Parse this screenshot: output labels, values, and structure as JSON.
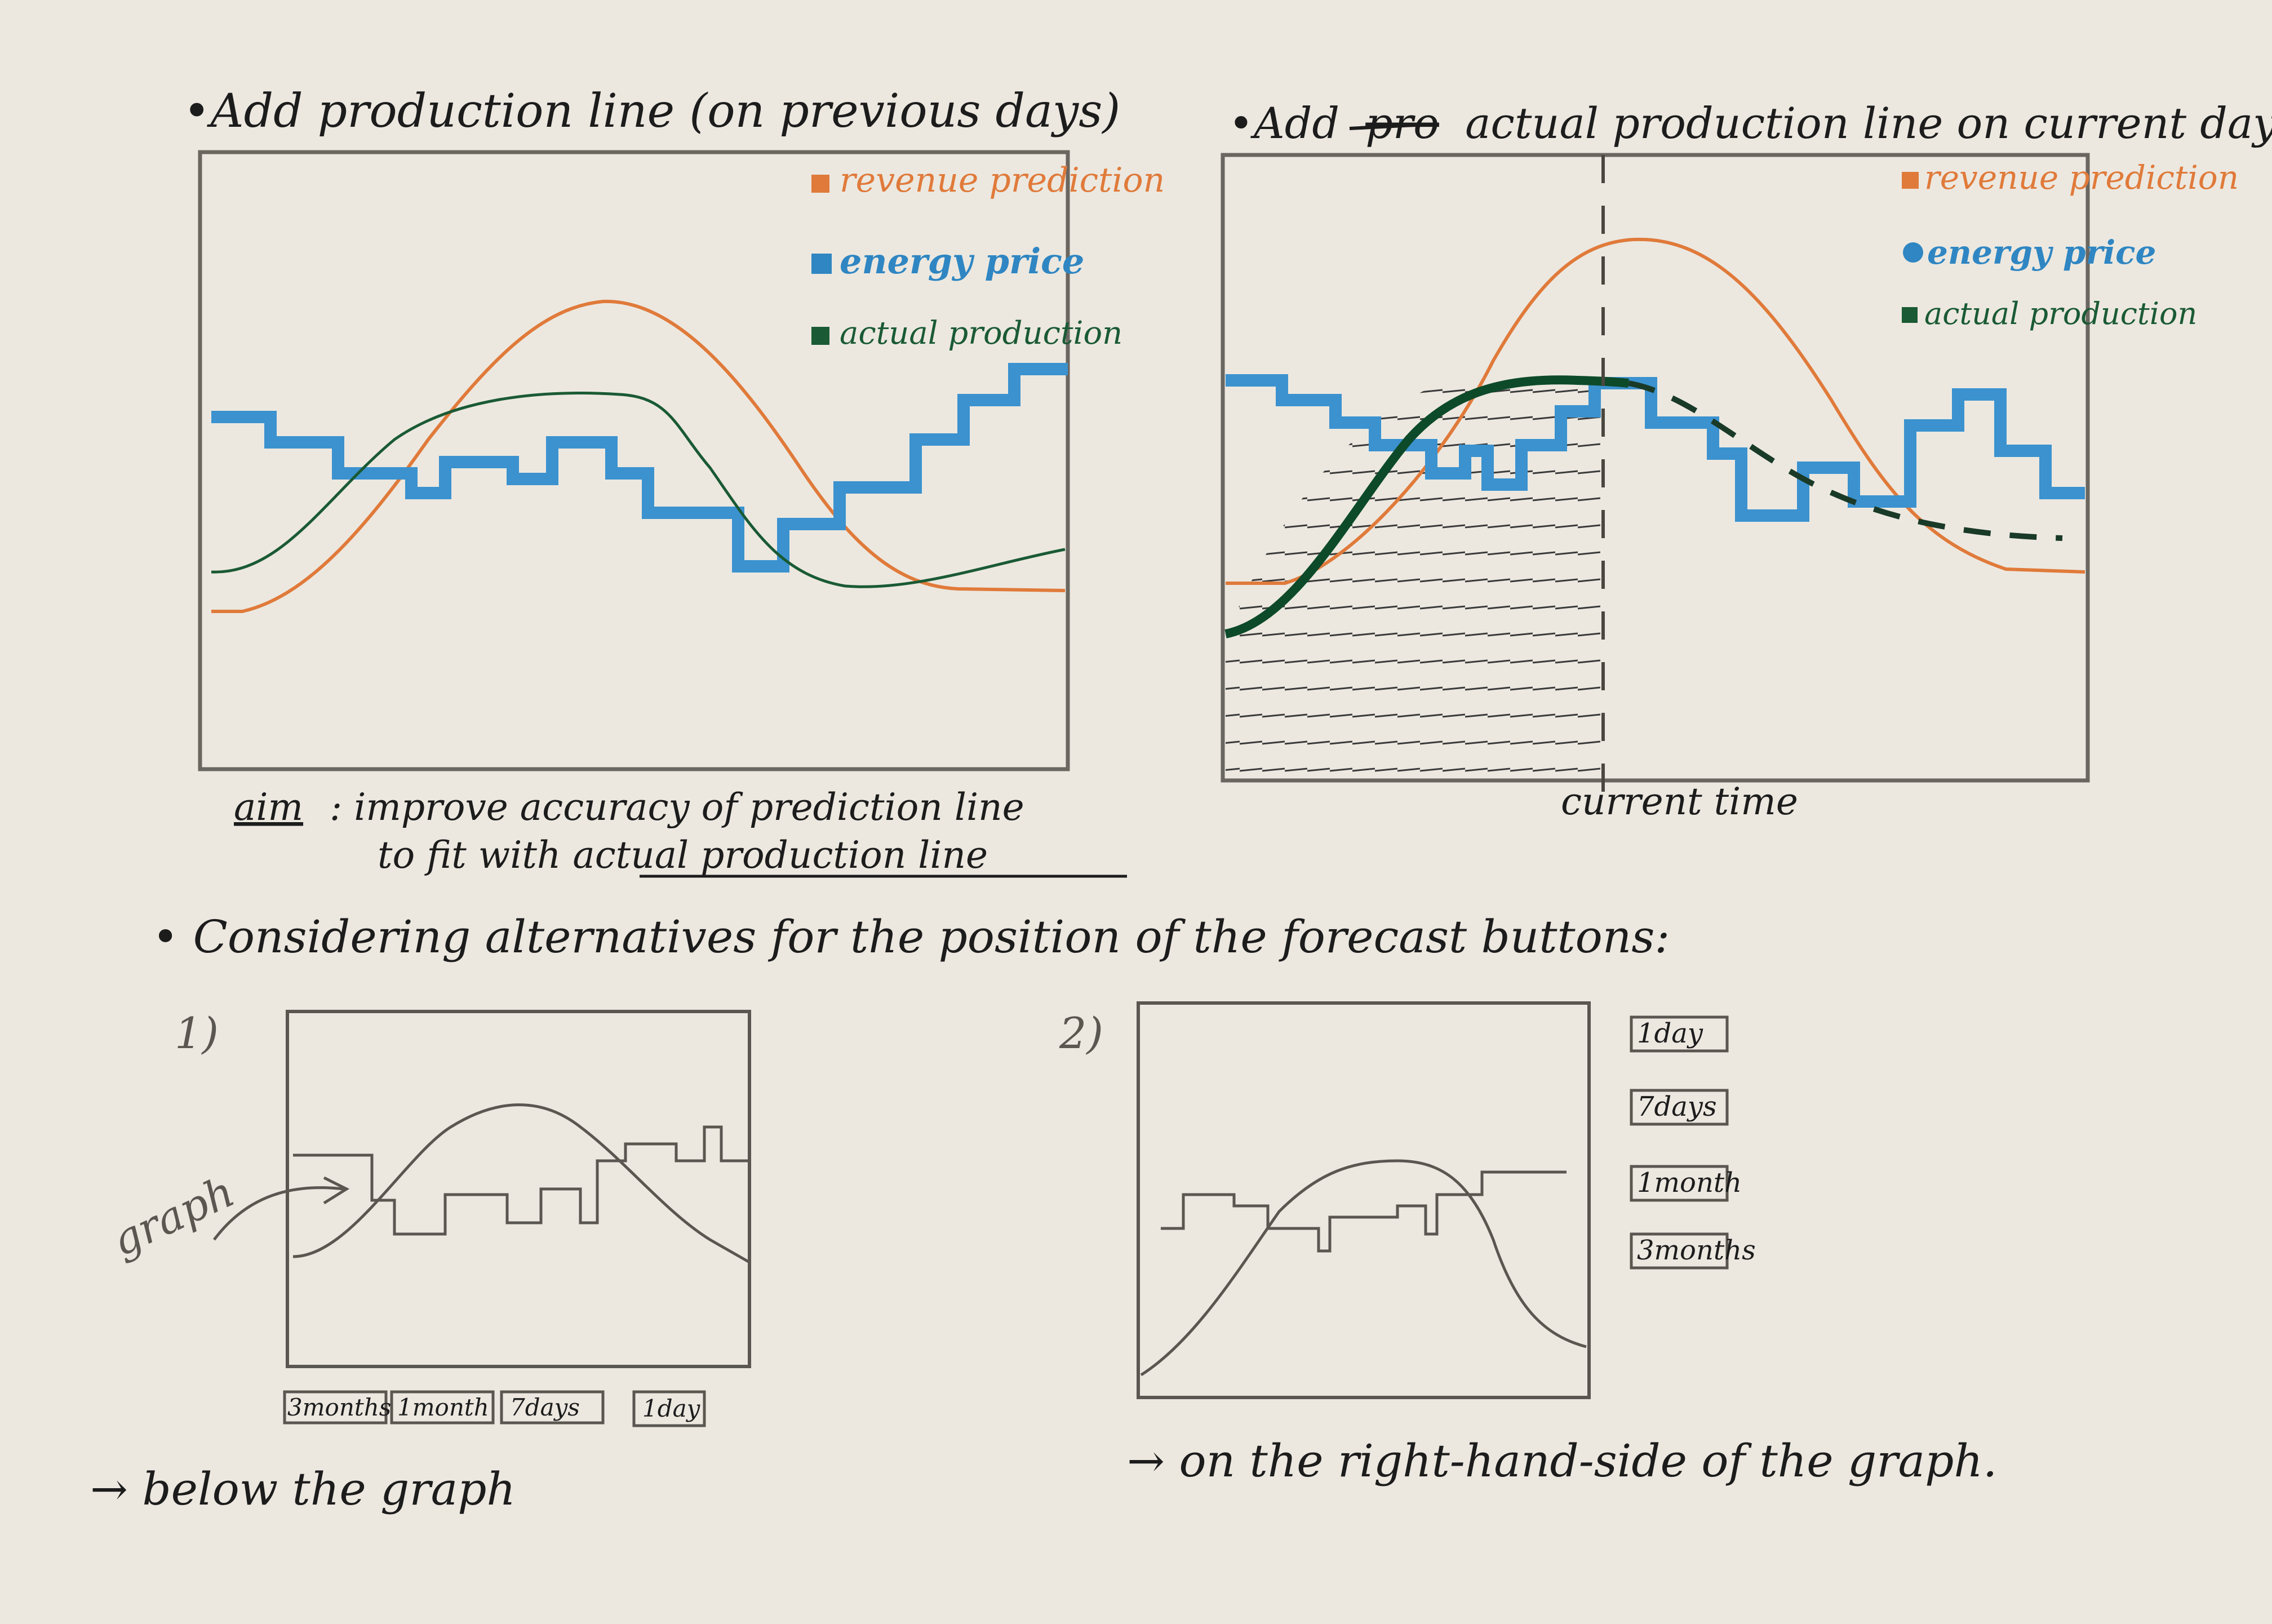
{
  "colors": {
    "paper": "#ece8e0",
    "ink": "#1c1c1c",
    "revenue": "#e07a3a",
    "energy": "#3b92cf",
    "production": "#1a5a34",
    "pencil": "#5a5650"
  },
  "top_left": {
    "heading": "•Add production line (on previous days)",
    "legend": {
      "revenue": "revenue prediction",
      "energy": "energy price",
      "production": "actual production"
    }
  },
  "top_right": {
    "heading_prefix": "•Add",
    "heading_struck": "pro",
    "heading_rest": "actual production line on current day",
    "legend": {
      "revenue": "revenue prediction",
      "energy": "energy price",
      "production": "actual production"
    },
    "current_time_label": "current time"
  },
  "aim": {
    "label": "aim",
    "line1": ": improve accuracy of prediction line",
    "line2": "to fit with actual production line"
  },
  "alternatives": {
    "heading": "• Considering alternatives for the position of the forecast buttons:",
    "option1": {
      "number": "1)",
      "graph_label": "graph",
      "buttons": [
        "3months",
        "1month",
        "7days",
        "1day"
      ],
      "caption": "→ below the graph"
    },
    "option2": {
      "number": "2)",
      "buttons": [
        "1day",
        "7days",
        "1month",
        "3months"
      ],
      "caption": "→ on the right-hand-side of the graph."
    }
  }
}
